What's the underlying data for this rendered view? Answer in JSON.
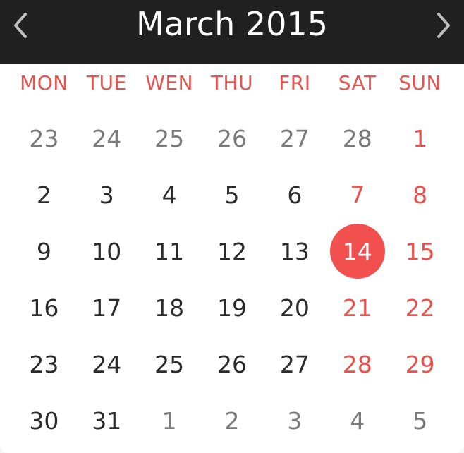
{
  "header": {
    "title": "March 2015",
    "prev_icon": "chevron-left-icon",
    "next_icon": "chevron-right-icon"
  },
  "weekdays": [
    "MON",
    "TUE",
    "WEN",
    "THU",
    "FRI",
    "SAT",
    "SUN"
  ],
  "weeks": [
    [
      {
        "day": "23",
        "type": "other"
      },
      {
        "day": "24",
        "type": "other"
      },
      {
        "day": "25",
        "type": "other"
      },
      {
        "day": "26",
        "type": "other"
      },
      {
        "day": "27",
        "type": "other"
      },
      {
        "day": "28",
        "type": "other"
      },
      {
        "day": "1",
        "type": "weekend"
      }
    ],
    [
      {
        "day": "2",
        "type": "normal"
      },
      {
        "day": "3",
        "type": "normal"
      },
      {
        "day": "4",
        "type": "normal"
      },
      {
        "day": "5",
        "type": "normal"
      },
      {
        "day": "6",
        "type": "normal"
      },
      {
        "day": "7",
        "type": "weekend"
      },
      {
        "day": "8",
        "type": "weekend"
      }
    ],
    [
      {
        "day": "9",
        "type": "normal"
      },
      {
        "day": "10",
        "type": "normal"
      },
      {
        "day": "11",
        "type": "normal"
      },
      {
        "day": "12",
        "type": "normal"
      },
      {
        "day": "13",
        "type": "normal"
      },
      {
        "day": "14",
        "type": "selected"
      },
      {
        "day": "15",
        "type": "weekend"
      }
    ],
    [
      {
        "day": "16",
        "type": "normal"
      },
      {
        "day": "17",
        "type": "normal"
      },
      {
        "day": "18",
        "type": "normal"
      },
      {
        "day": "19",
        "type": "normal"
      },
      {
        "day": "20",
        "type": "normal"
      },
      {
        "day": "21",
        "type": "weekend"
      },
      {
        "day": "22",
        "type": "weekend"
      }
    ],
    [
      {
        "day": "23",
        "type": "normal"
      },
      {
        "day": "24",
        "type": "normal"
      },
      {
        "day": "25",
        "type": "normal"
      },
      {
        "day": "26",
        "type": "normal"
      },
      {
        "day": "27",
        "type": "normal"
      },
      {
        "day": "28",
        "type": "weekend"
      },
      {
        "day": "29",
        "type": "weekend"
      }
    ],
    [
      {
        "day": "30",
        "type": "normal"
      },
      {
        "day": "31",
        "type": "normal"
      },
      {
        "day": "1",
        "type": "other"
      },
      {
        "day": "2",
        "type": "other"
      },
      {
        "day": "3",
        "type": "other"
      },
      {
        "day": "4",
        "type": "other"
      },
      {
        "day": "5",
        "type": "other"
      }
    ]
  ],
  "colors": {
    "header_bg": "#202020",
    "accent": "#f2504f",
    "weekday_text": "#e9534f",
    "day_text": "#2b2b2b",
    "other_month_text": "#7a7a7a"
  }
}
